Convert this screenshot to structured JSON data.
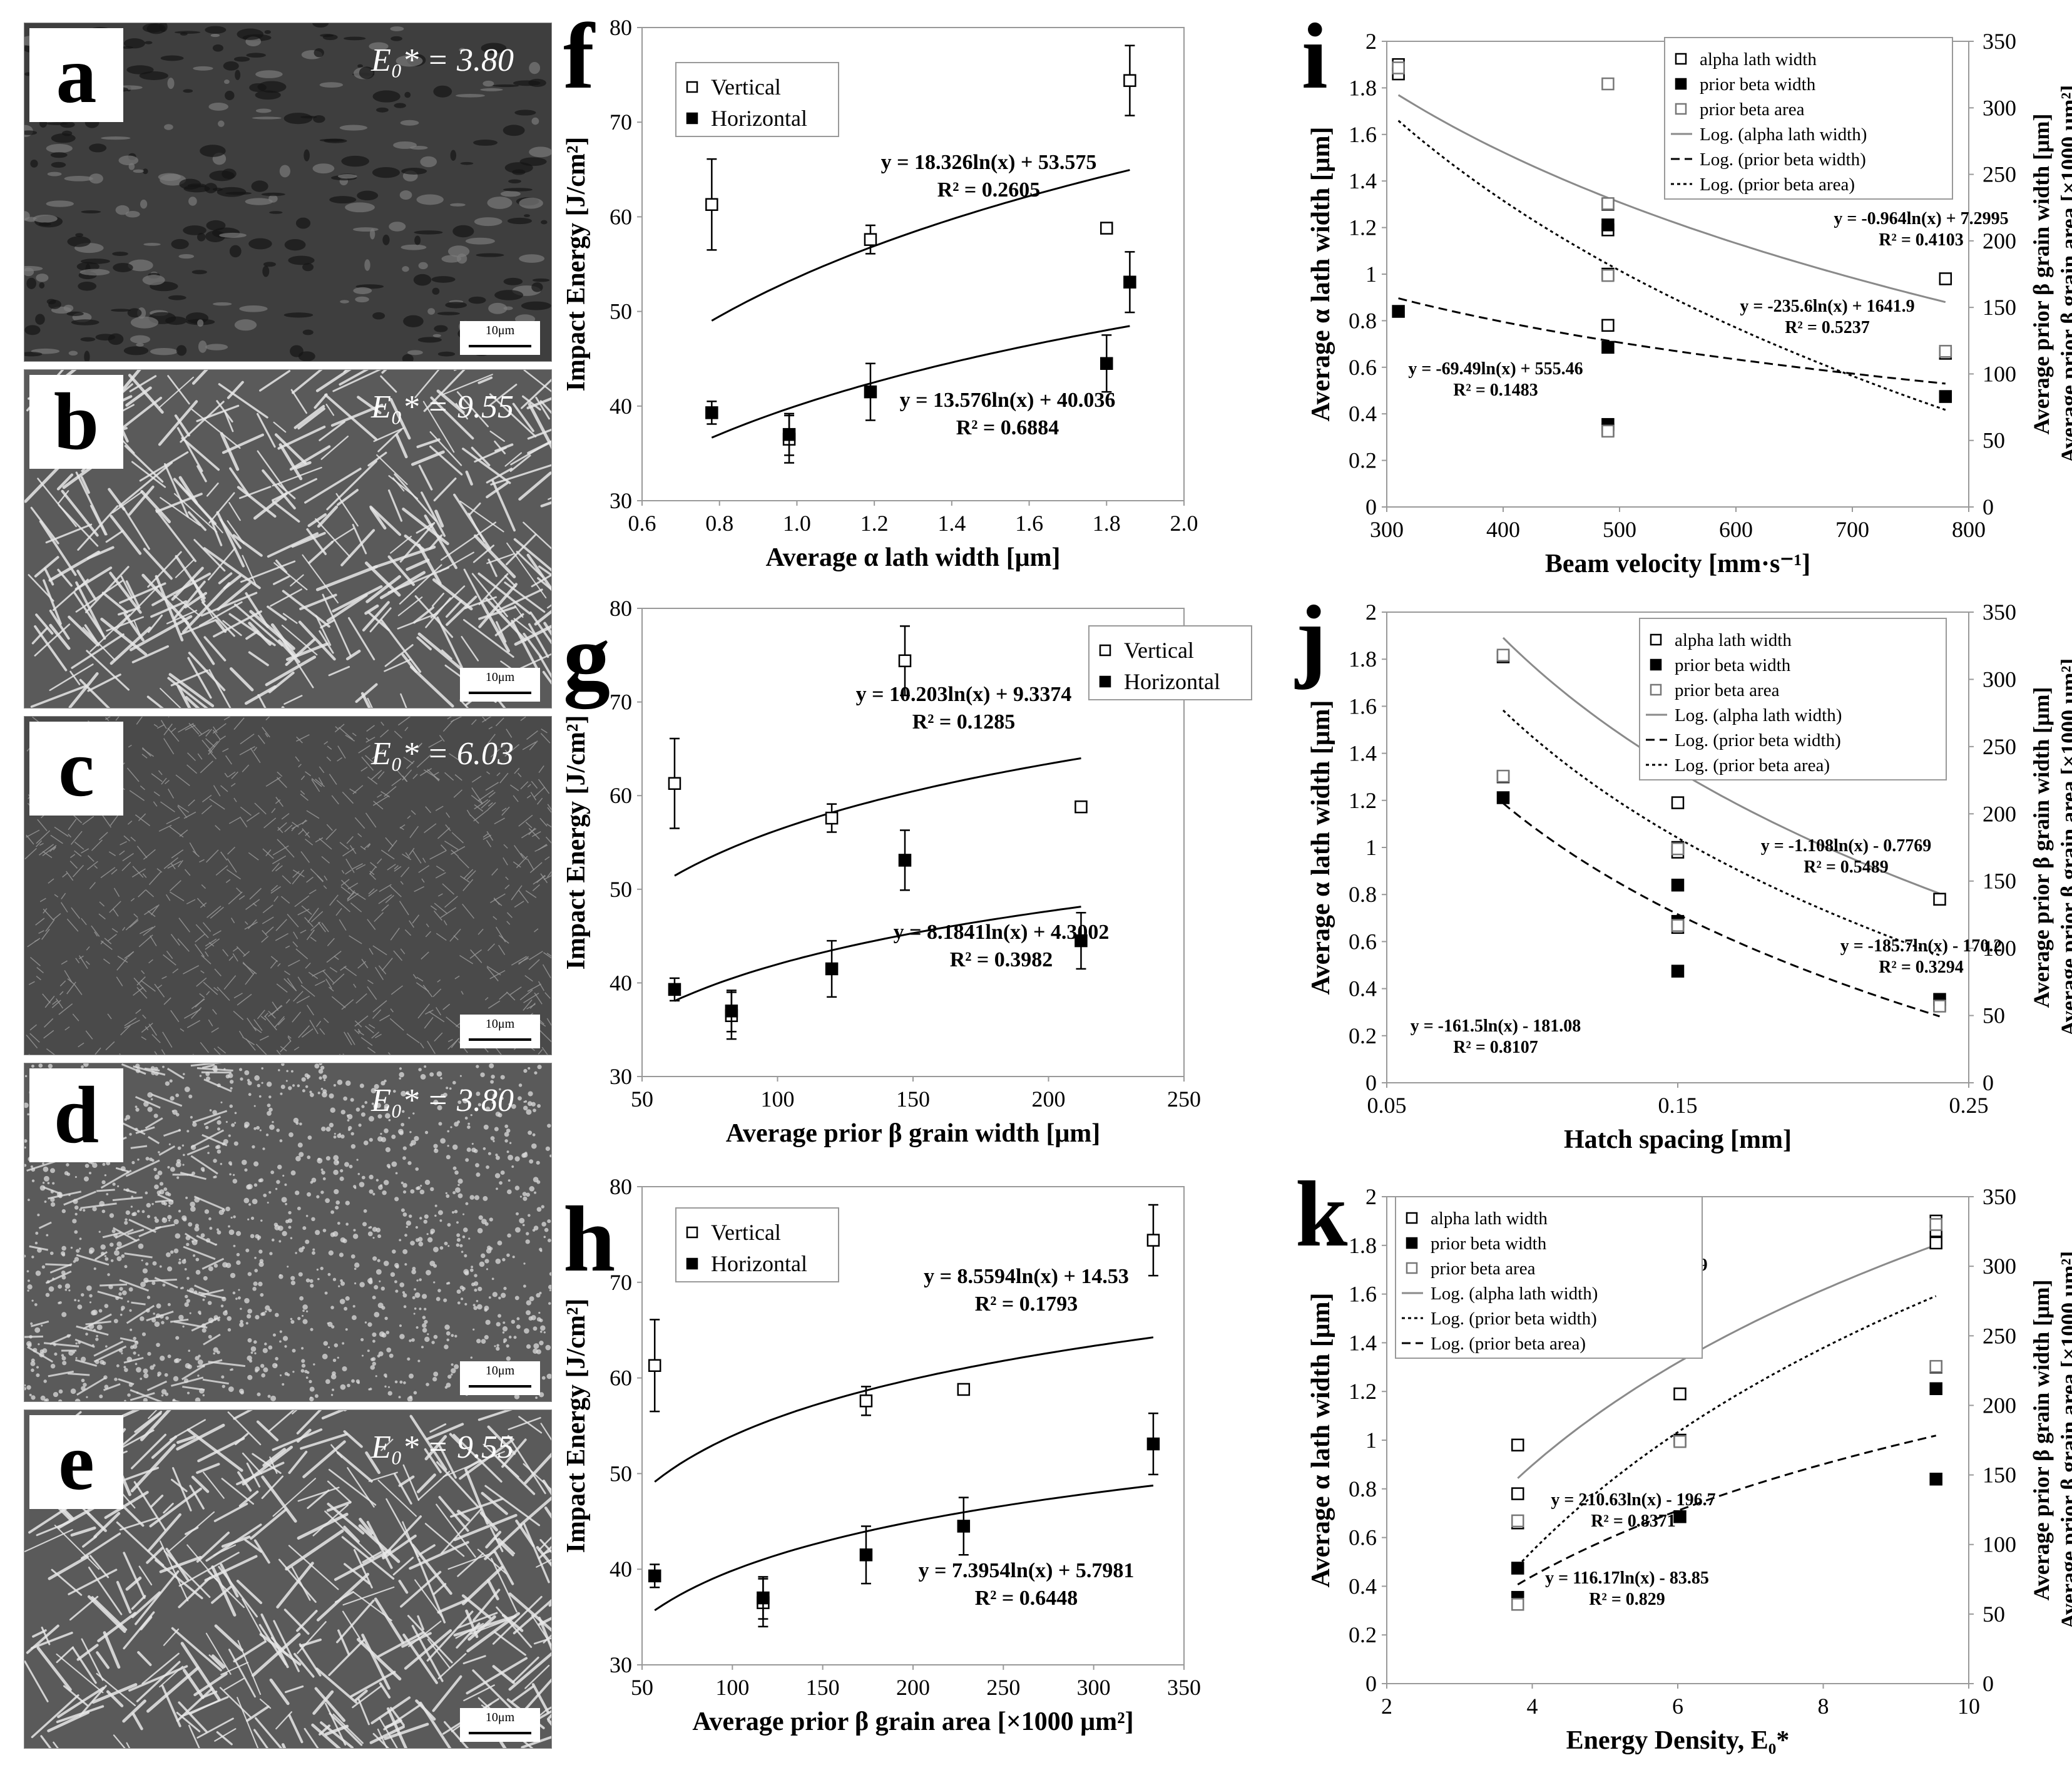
{
  "micrographs": [
    {
      "id": "a",
      "label": "a",
      "e0": "E₀* = 3.80",
      "scale": "10μm",
      "texture": "dark"
    },
    {
      "id": "b",
      "label": "b",
      "e0": "E₀* = 9.55",
      "scale": "10μm",
      "texture": "laths"
    },
    {
      "id": "c",
      "label": "c",
      "e0": "E₀* = 6.03",
      "scale": "10μm",
      "texture": "fine"
    },
    {
      "id": "d",
      "label": "d",
      "e0": "E₀* = 3.80",
      "scale": "10μm",
      "texture": "dots"
    },
    {
      "id": "e",
      "label": "e",
      "e0": "E₀* = 9.55",
      "scale": "10μm",
      "texture": "laths"
    }
  ],
  "chart_data": [
    {
      "id": "f",
      "label": "f",
      "type": "scatter",
      "xlabel": "Average α lath width [μm]",
      "ylabel": "Impact Energy [J/cm²]",
      "xlim": [
        0.6,
        2.0
      ],
      "ylim": [
        30,
        80
      ],
      "xticks": [
        "0.6",
        "0.8",
        "1.0",
        "1.2",
        "1.4",
        "1.6",
        "1.8",
        "2.0"
      ],
      "yticks": [
        "30",
        "40",
        "50",
        "60",
        "70",
        "80"
      ],
      "legend": [
        "Vertical",
        "Horizontal"
      ],
      "series": [
        {
          "name": "Vertical",
          "marker": "open",
          "points": [
            [
              0.78,
              61.3,
              4.8
            ],
            [
              0.98,
              36.5,
              2.5
            ],
            [
              1.19,
              57.6,
              1.5
            ],
            [
              1.8,
              58.8,
              0
            ],
            [
              1.86,
              74.4,
              3.7
            ]
          ]
        },
        {
          "name": "Horizontal",
          "marker": "filled",
          "points": [
            [
              0.78,
              39.3,
              1.2
            ],
            [
              0.98,
              37.0,
              2.2
            ],
            [
              1.19,
              41.5,
              3
            ],
            [
              1.8,
              44.5,
              3
            ],
            [
              1.86,
              53.1,
              3.2
            ]
          ]
        }
      ],
      "fits": [
        {
          "a": 18.326,
          "b": 53.575,
          "x0": 0.78,
          "x1": 1.86,
          "dash": "solid",
          "eq": "y = 18.326ln(x) + 53.575",
          "r2": "R² = 0.2605"
        },
        {
          "a": 13.576,
          "b": 40.036,
          "x0": 0.78,
          "x1": 1.86,
          "dash": "solid",
          "eq": "y = 13.576ln(x) + 40.036",
          "r2": "R² = 0.6884"
        }
      ]
    },
    {
      "id": "g",
      "label": "g",
      "type": "scatter",
      "xlabel": "Average prior β grain width [μm]",
      "ylabel": "Impact Energy [J/cm²]",
      "xlim": [
        50,
        250
      ],
      "ylim": [
        30,
        80
      ],
      "xticks": [
        "50",
        "100",
        "150",
        "200",
        "250"
      ],
      "yticks": [
        "30",
        "40",
        "50",
        "60",
        "70",
        "80"
      ],
      "legend": [
        "Vertical",
        "Horizontal"
      ],
      "series": [
        {
          "name": "Vertical",
          "marker": "open",
          "points": [
            [
              62,
              61.3,
              4.8
            ],
            [
              83,
              36.5,
              2.5
            ],
            [
              120,
              57.6,
              1.5
            ],
            [
              147,
              74.4,
              3.7
            ],
            [
              212,
              58.8,
              0
            ]
          ]
        },
        {
          "name": "Horizontal",
          "marker": "filled",
          "points": [
            [
              62,
              39.3,
              1.2
            ],
            [
              83,
              37.0,
              2.2
            ],
            [
              120,
              41.5,
              3
            ],
            [
              147,
              53.1,
              3.2
            ],
            [
              212,
              44.5,
              3
            ]
          ]
        }
      ],
      "fits": [
        {
          "a": 10.203,
          "b": 9.3374,
          "x0": 62,
          "x1": 212,
          "dash": "solid",
          "eq": "y = 10.203ln(x) + 9.3374",
          "r2": "R² = 0.1285"
        },
        {
          "a": 8.1841,
          "b": 4.3002,
          "x0": 62,
          "x1": 212,
          "dash": "solid",
          "eq": "y = 8.1841ln(x) + 4.3002",
          "r2": "R² = 0.3982"
        }
      ]
    },
    {
      "id": "h",
      "label": "h",
      "type": "scatter",
      "xlabel": "Average prior β grain area [×1000 μm²]",
      "ylabel": "Impact Energy [J/cm²]",
      "xlim": [
        50,
        350
      ],
      "ylim": [
        30,
        80
      ],
      "xticks": [
        "50",
        "100",
        "150",
        "200",
        "250",
        "300",
        "350"
      ],
      "yticks": [
        "30",
        "40",
        "50",
        "60",
        "70",
        "80"
      ],
      "legend": [
        "Vertical",
        "Horizontal"
      ],
      "series": [
        {
          "name": "Vertical",
          "marker": "open",
          "points": [
            [
              57,
              61.3,
              4.8
            ],
            [
              117,
              36.5,
              2.5
            ],
            [
              174,
              57.6,
              1.5
            ],
            [
              228,
              58.8,
              0
            ],
            [
              333,
              74.4,
              3.7
            ]
          ]
        },
        {
          "name": "Horizontal",
          "marker": "filled",
          "points": [
            [
              57,
              39.3,
              1.2
            ],
            [
              117,
              37.0,
              2.2
            ],
            [
              174,
              41.5,
              3
            ],
            [
              228,
              44.5,
              3
            ],
            [
              333,
              53.1,
              3.2
            ]
          ]
        }
      ],
      "fits": [
        {
          "a": 8.5594,
          "b": 14.53,
          "x0": 57,
          "x1": 333,
          "dash": "solid",
          "eq": "y = 8.5594ln(x) + 14.53",
          "r2": "R² = 0.1793"
        },
        {
          "a": 7.3954,
          "b": 5.7981,
          "x0": 57,
          "x1": 333,
          "dash": "solid",
          "eq": "y = 7.3954ln(x) + 5.7981",
          "r2": "R² = 0.6448"
        }
      ]
    },
    {
      "id": "i",
      "label": "i",
      "type": "scatter",
      "xlabel": "Beam velocity [mm·s⁻¹]",
      "ylabel": "Average α lath width [μm]",
      "y2label": [
        "Average prior β grain width [μm]",
        "Average prior β grain area [×1000 μm²]"
      ],
      "xlim": [
        300,
        800
      ],
      "ylim": [
        0,
        2
      ],
      "y2lim": [
        0,
        350
      ],
      "xticks": [
        "300",
        "400",
        "500",
        "600",
        "700",
        "800"
      ],
      "yticks": [
        "0",
        "0.2",
        "0.4",
        "0.6",
        "0.8",
        "1",
        "1.2",
        "1.4",
        "1.6",
        "1.8",
        "2"
      ],
      "y2ticks": [
        "0",
        "50",
        "100",
        "150",
        "200",
        "250",
        "300",
        "350"
      ],
      "legend": [
        "alpha lath width",
        "prior beta width",
        "prior beta area",
        "Log. (alpha lath width)",
        "Log. (prior beta width)",
        "Log. (prior beta area)"
      ],
      "series": [
        {
          "name": "alpha lath width",
          "marker": "open",
          "axis": "left",
          "points": [
            [
              310,
              1.86
            ],
            [
              310,
              1.9
            ],
            [
              490,
              1.3
            ],
            [
              490,
              1.19
            ],
            [
              490,
              1.0
            ],
            [
              490,
              0.78
            ],
            [
              490,
              0.33
            ],
            [
              780,
              0.98
            ],
            [
              780,
              0.66
            ]
          ]
        },
        {
          "name": "prior beta width",
          "marker": "filled",
          "axis": "right",
          "points": [
            [
              310,
              147
            ],
            [
              490,
              212
            ],
            [
              490,
              120
            ],
            [
              490,
              62
            ],
            [
              780,
              83
            ]
          ]
        },
        {
          "name": "prior beta area",
          "marker": "grey",
          "axis": "right",
          "points": [
            [
              310,
              330
            ],
            [
              490,
              318
            ],
            [
              490,
              228
            ],
            [
              490,
              174
            ],
            [
              490,
              57
            ],
            [
              780,
              117
            ]
          ]
        }
      ],
      "fits": [
        {
          "a": -0.964,
          "b": 7.2995,
          "x0": 310,
          "x1": 780,
          "dash": "solid",
          "axis": "left",
          "eq": "y = -0.964ln(x) + 7.2995",
          "r2": "R² = 0.4103"
        },
        {
          "a": -69.49,
          "b": 555.46,
          "x0": 310,
          "x1": 780,
          "dash": "dashed",
          "axis": "right",
          "eq": "y = -69.49ln(x) + 555.46",
          "r2": "R² = 0.1483"
        },
        {
          "a": -235.6,
          "b": 1641.9,
          "x0": 310,
          "x1": 780,
          "dash": "dotted",
          "axis": "right",
          "eq": "y = -235.6ln(x) + 1641.9",
          "r2": "R² = 0.5237"
        }
      ]
    },
    {
      "id": "j",
      "label": "j",
      "type": "scatter",
      "xlabel": "Hatch spacing [mm]",
      "ylabel": "Average α lath width [μm]",
      "y2label": [
        "Average prior β grain width [μm]",
        "Average prior β grain area [×1000 μm²]"
      ],
      "xlim": [
        0.05,
        0.25
      ],
      "ylim": [
        0,
        2
      ],
      "y2lim": [
        0,
        350
      ],
      "xticks": [
        "0.05",
        "0.15",
        "0.25"
      ],
      "yticks": [
        "0",
        "0.2",
        "0.4",
        "0.6",
        "0.8",
        "1",
        "1.2",
        "1.4",
        "1.6",
        "1.8",
        "2"
      ],
      "y2ticks": [
        "0",
        "50",
        "100",
        "150",
        "200",
        "250",
        "300",
        "350"
      ],
      "legend": [
        "alpha lath width",
        "prior beta width",
        "prior beta area",
        "Log. (alpha lath width)",
        "Log. (prior beta width)",
        "Log. (prior beta area)"
      ],
      "series": [
        {
          "name": "alpha lath width",
          "marker": "open",
          "axis": "left",
          "points": [
            [
              0.09,
              1.81
            ],
            [
              0.09,
              1.3
            ],
            [
              0.15,
              1.9
            ],
            [
              0.15,
              1.86
            ],
            [
              0.15,
              1.19
            ],
            [
              0.15,
              1.0
            ],
            [
              0.15,
              0.98
            ],
            [
              0.15,
              0.66
            ],
            [
              0.24,
              0.78
            ],
            [
              0.24,
              0.33
            ]
          ]
        },
        {
          "name": "prior beta width",
          "marker": "filled",
          "axis": "right",
          "points": [
            [
              0.09,
              212
            ],
            [
              0.15,
              147
            ],
            [
              0.15,
              120
            ],
            [
              0.15,
              83
            ],
            [
              0.24,
              62
            ]
          ]
        },
        {
          "name": "prior beta area",
          "marker": "grey",
          "axis": "right",
          "points": [
            [
              0.09,
              318
            ],
            [
              0.09,
              228
            ],
            [
              0.15,
              330
            ],
            [
              0.15,
              174
            ],
            [
              0.15,
              117
            ],
            [
              0.24,
              57
            ]
          ]
        }
      ],
      "fits": [
        {
          "a": -1.108,
          "b": -0.7769,
          "x0": 0.09,
          "x1": 0.24,
          "dash": "solid",
          "axis": "left",
          "eq": "y = -1.108ln(x) - 0.7769",
          "r2": "R² = 0.5489"
        },
        {
          "a": -161.5,
          "b": -181.08,
          "x0": 0.09,
          "x1": 0.24,
          "dash": "dashed",
          "axis": "right",
          "eq": "y = -161.5ln(x) - 181.08",
          "r2": "R² = 0.8107"
        },
        {
          "a": -185.7,
          "b": -170.2,
          "x0": 0.09,
          "x1": 0.24,
          "dash": "dotted",
          "axis": "right",
          "eq": "y = -185.7ln(x) - 170.2",
          "r2": "R² = 0.3294"
        }
      ]
    },
    {
      "id": "k",
      "label": "k",
      "type": "scatter",
      "xlabel": "Energy Density, E₀*",
      "ylabel": "Average α lath width [μm]",
      "y2label": [
        "Average prior β grain width [μm]",
        "Average prior β grain area [×1000 μm²]"
      ],
      "xlim": [
        2,
        10
      ],
      "ylim": [
        0,
        2
      ],
      "y2lim": [
        0,
        350
      ],
      "xticks": [
        "2",
        "4",
        "6",
        "8",
        "10"
      ],
      "yticks": [
        "0",
        "0.2",
        "0.4",
        "0.6",
        "0.8",
        "1",
        "1.2",
        "1.4",
        "1.6",
        "1.8",
        "2"
      ],
      "y2ticks": [
        "0",
        "50",
        "100",
        "150",
        "200",
        "250",
        "300",
        "350"
      ],
      "legend": [
        "alpha lath width",
        "prior beta width",
        "prior beta area",
        "Log. (alpha lath width)",
        "Log. (prior beta width)",
        "Log. (prior beta area)"
      ],
      "series": [
        {
          "name": "alpha lath width",
          "marker": "open",
          "axis": "left",
          "points": [
            [
              3.8,
              0.98
            ],
            [
              3.8,
              0.78
            ],
            [
              3.8,
              0.66
            ],
            [
              3.8,
              0.33
            ],
            [
              6.03,
              1.19
            ],
            [
              6.03,
              1.0
            ],
            [
              9.55,
              1.9
            ],
            [
              9.55,
              1.86
            ],
            [
              9.55,
              1.81
            ],
            [
              9.55,
              1.3
            ]
          ]
        },
        {
          "name": "prior beta width",
          "marker": "filled",
          "axis": "right",
          "points": [
            [
              3.8,
              83
            ],
            [
              3.8,
              62
            ],
            [
              6.03,
              120
            ],
            [
              9.55,
              212
            ],
            [
              9.55,
              147
            ]
          ]
        },
        {
          "name": "prior beta area",
          "marker": "grey",
          "axis": "right",
          "points": [
            [
              3.8,
              57
            ],
            [
              3.8,
              117
            ],
            [
              6.03,
              174
            ],
            [
              9.55,
              330
            ],
            [
              9.55,
              228
            ]
          ]
        }
      ],
      "fits": [
        {
          "a": 1.0394,
          "b": -0.5439,
          "x0": 3.8,
          "x1": 9.55,
          "dash": "solid",
          "axis": "left",
          "eq": "y = 1.0394ln(x) - 0.5439",
          "r2": "R² = 0.9535"
        },
        {
          "a": 210.63,
          "b": -196.7,
          "x0": 3.8,
          "x1": 9.55,
          "dash": "dotted",
          "axis": "right",
          "eq": "y = 210.63ln(x) - 196.7",
          "r2": "R² = 0.8371"
        },
        {
          "a": 116.17,
          "b": -83.85,
          "x0": 3.8,
          "x1": 9.55,
          "dash": "dashed",
          "axis": "right",
          "eq": "y = 116.17ln(x) - 83.85",
          "r2": "R² = 0.829"
        }
      ]
    }
  ]
}
